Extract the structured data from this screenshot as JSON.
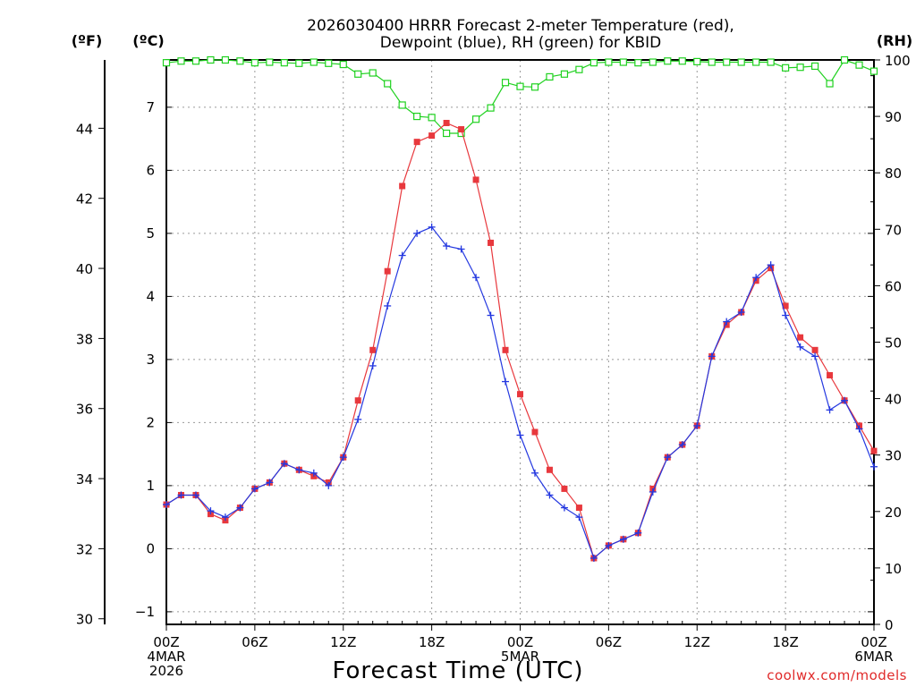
{
  "chart_data": {
    "type": "line",
    "title_lines": [
      "2026030400 HRRR Forecast 2-meter Temperature (red),",
      "Dewpoint (blue), RH (green) for KBID"
    ],
    "unit_labels": {
      "fahrenheit": "(ºF)",
      "celsius": "(ºC)",
      "rh": "(RH)"
    },
    "xlabel": "Forecast Time (UTC)",
    "credit": "coolwx.com/models",
    "x_ticks": [
      {
        "hour": 0,
        "lines": [
          "00Z",
          "4MAR",
          "2026"
        ]
      },
      {
        "hour": 6,
        "lines": [
          "06Z"
        ]
      },
      {
        "hour": 12,
        "lines": [
          "12Z"
        ]
      },
      {
        "hour": 18,
        "lines": [
          "18Z"
        ]
      },
      {
        "hour": 24,
        "lines": [
          "00Z",
          "5MAR"
        ]
      },
      {
        "hour": 30,
        "lines": [
          "06Z"
        ]
      },
      {
        "hour": 36,
        "lines": [
          "12Z"
        ]
      },
      {
        "hour": 42,
        "lines": [
          "18Z"
        ]
      },
      {
        "hour": 48,
        "lines": [
          "00Z",
          "6MAR"
        ]
      }
    ],
    "x_range_hours": [
      0,
      48
    ],
    "celsius_axis": {
      "range": [
        -1.2,
        7.75
      ],
      "ticks": [
        -1,
        0,
        1,
        2,
        3,
        4,
        5,
        6,
        7
      ]
    },
    "fahrenheit_axis": {
      "ticks": [
        30,
        32,
        34,
        36,
        38,
        40,
        42,
        44
      ]
    },
    "rh_axis": {
      "range": [
        0,
        100
      ],
      "ticks": [
        0,
        10,
        20,
        30,
        40,
        50,
        60,
        70,
        80,
        90,
        100
      ]
    },
    "series": [
      {
        "name": "Temperature",
        "unit": "C",
        "color": "#e8383d",
        "marker": "filled-square",
        "values": [
          0.7,
          0.85,
          0.85,
          0.55,
          0.45,
          0.65,
          0.95,
          1.05,
          1.35,
          1.25,
          1.15,
          1.05,
          1.45,
          2.35,
          3.15,
          4.4,
          5.75,
          6.45,
          6.55,
          6.75,
          6.65,
          5.85,
          4.85,
          3.15,
          2.45,
          1.85,
          1.25,
          0.95,
          0.65,
          -0.15,
          0.05,
          0.15,
          0.25,
          0.95,
          1.45,
          1.65,
          1.95,
          3.05,
          3.55,
          3.75,
          4.25,
          4.45,
          3.85,
          3.35,
          3.15,
          2.75,
          2.35,
          1.95,
          1.55
        ]
      },
      {
        "name": "Dewpoint",
        "unit": "C",
        "color": "#2438e0",
        "marker": "plus",
        "values": [
          0.7,
          0.85,
          0.85,
          0.6,
          0.5,
          0.65,
          0.95,
          1.05,
          1.35,
          1.25,
          1.2,
          1.0,
          1.45,
          2.05,
          2.9,
          3.85,
          4.65,
          5.0,
          5.1,
          4.8,
          4.75,
          4.3,
          3.7,
          2.65,
          1.8,
          1.2,
          0.85,
          0.65,
          0.5,
          -0.15,
          0.05,
          0.15,
          0.25,
          0.9,
          1.45,
          1.65,
          1.95,
          3.05,
          3.6,
          3.75,
          4.3,
          4.5,
          3.7,
          3.2,
          3.05,
          2.2,
          2.35,
          1.9,
          1.3
        ]
      },
      {
        "name": "RH",
        "unit": "%",
        "color": "#1fd11f",
        "marker": "open-square",
        "values": [
          99.5,
          99.8,
          99.8,
          100,
          100,
          99.8,
          99.5,
          99.6,
          99.5,
          99.4,
          99.6,
          99.4,
          99.2,
          97.5,
          97.7,
          95.8,
          92,
          90,
          89.8,
          87,
          87,
          89.5,
          91.5,
          96,
          95.3,
          95.2,
          97,
          97.5,
          98.3,
          99.5,
          99.6,
          99.6,
          99.5,
          99.6,
          99.8,
          99.8,
          99.7,
          99.6,
          99.6,
          99.6,
          99.6,
          99.6,
          98.6,
          98.7,
          98.9,
          95.8,
          100,
          99.1,
          98
        ]
      }
    ]
  }
}
